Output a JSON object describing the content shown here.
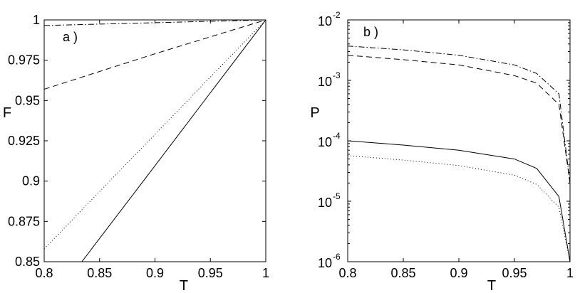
{
  "chart_data": [
    {
      "type": "line",
      "panel_label": "a )",
      "xlabel": "T",
      "ylabel": "F",
      "xlim": [
        0.8,
        1.0
      ],
      "ylim": [
        0.85,
        1.0
      ],
      "xticks": [
        "0.8",
        "0.85",
        "0.9",
        "0.95",
        "1"
      ],
      "xtick_values": [
        0.8,
        0.85,
        0.9,
        0.95,
        1.0
      ],
      "yticks": [
        "0.85",
        "0.875",
        "0.9",
        "0.925",
        "0.95",
        "0.975",
        "1"
      ],
      "ytick_values": [
        0.85,
        0.875,
        0.9,
        0.925,
        0.95,
        0.975,
        1.0
      ],
      "scale": "linear",
      "grid": false,
      "series": [
        {
          "style": "solid",
          "x": [
            0.834,
            0.9,
            0.95,
            1.0
          ],
          "y": [
            0.85,
            0.9095,
            0.9548,
            1.0
          ]
        },
        {
          "style": "dotted",
          "x": [
            0.8,
            0.85,
            0.9,
            0.95,
            1.0
          ],
          "y": [
            0.858,
            0.8935,
            0.929,
            0.9645,
            1.0
          ]
        },
        {
          "style": "dashed",
          "x": [
            0.8,
            0.85,
            0.9,
            0.95,
            1.0
          ],
          "y": [
            0.957,
            0.968,
            0.979,
            0.9895,
            1.0
          ]
        },
        {
          "style": "dashdot",
          "x": [
            0.8,
            0.9,
            1.0
          ],
          "y": [
            0.9965,
            0.9983,
            1.0
          ]
        }
      ]
    },
    {
      "type": "line",
      "panel_label": "b )",
      "xlabel": "T",
      "ylabel": "P",
      "xlim": [
        0.8,
        1.0
      ],
      "ylim": [
        1e-06,
        0.01
      ],
      "xticks": [
        "0.8",
        "0.85",
        "0.9",
        "0.95",
        "1"
      ],
      "xtick_values": [
        0.8,
        0.85,
        0.9,
        0.95,
        1.0
      ],
      "yticks": [
        {
          "base": "10",
          "exp": "-6"
        },
        {
          "base": "10",
          "exp": "-5"
        },
        {
          "base": "10",
          "exp": "-4"
        },
        {
          "base": "10",
          "exp": "-3"
        },
        {
          "base": "10",
          "exp": "-2"
        }
      ],
      "ytick_values": [
        1e-06,
        1e-05,
        0.0001,
        0.001,
        0.01
      ],
      "scale": "log",
      "grid": false,
      "series": [
        {
          "style": "dashdot",
          "x": [
            0.8,
            0.85,
            0.9,
            0.95,
            0.97,
            0.99,
            1.0
          ],
          "y": [
            0.0037,
            0.0032,
            0.0026,
            0.0018,
            0.0013,
            0.0006,
            2e-05
          ]
        },
        {
          "style": "dashed",
          "x": [
            0.8,
            0.85,
            0.9,
            0.95,
            0.97,
            0.99,
            1.0
          ],
          "y": [
            0.0026,
            0.0022,
            0.0018,
            0.0012,
            0.0009,
            0.0004,
            2e-05
          ]
        },
        {
          "style": "solid",
          "x": [
            0.8,
            0.85,
            0.9,
            0.95,
            0.97,
            0.99,
            1.0
          ],
          "y": [
            0.0001,
            8.5e-05,
            7e-05,
            5e-05,
            3.5e-05,
            1.2e-05,
            1e-06
          ]
        },
        {
          "style": "dotted",
          "x": [
            0.8,
            0.85,
            0.9,
            0.95,
            0.97,
            0.99,
            1.0
          ],
          "y": [
            5.7e-05,
            4.8e-05,
            3.9e-05,
            2.7e-05,
            1.9e-05,
            8e-06,
            1e-06
          ]
        }
      ]
    }
  ]
}
